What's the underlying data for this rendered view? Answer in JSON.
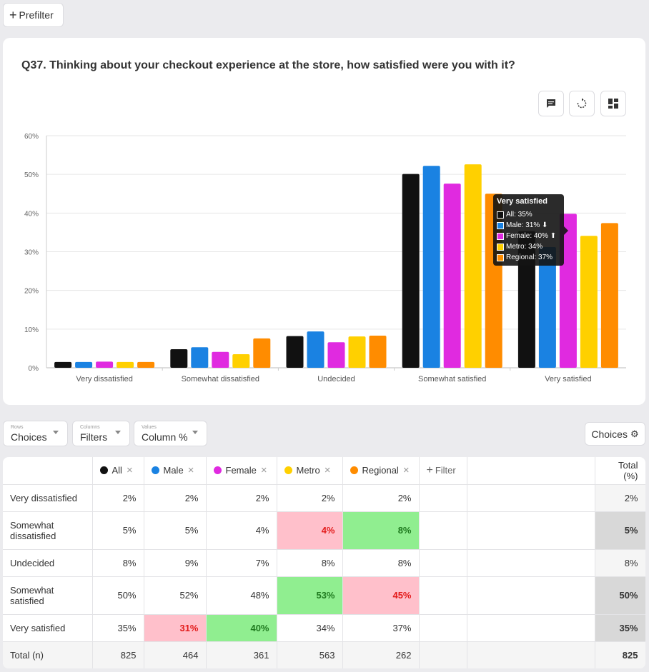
{
  "prefilter": {
    "label": "Prefilter"
  },
  "question": {
    "title": "Q37. Thinking about your checkout experience at the store, how satisfied were you with it?"
  },
  "toolbar": {
    "icons": [
      "comment-icon",
      "refresh-icon",
      "layout-icon"
    ]
  },
  "colors": {
    "All": "#111111",
    "Male": "#1a82e2",
    "Female": "#e02ae0",
    "Metro": "#ffd000",
    "Regional": "#ff8c00"
  },
  "chart_data": {
    "type": "bar",
    "categories": [
      "Very dissatisfied",
      "Somewhat dissatisfied",
      "Undecided",
      "Somewhat satisfied",
      "Very satisfied"
    ],
    "series": [
      {
        "name": "All",
        "values": [
          1.5,
          4.8,
          8.2,
          50.1,
          35.3
        ]
      },
      {
        "name": "Male",
        "values": [
          1.5,
          5.3,
          9.4,
          52.2,
          31.2
        ]
      },
      {
        "name": "Female",
        "values": [
          1.6,
          4.1,
          6.6,
          47.6,
          39.8
        ]
      },
      {
        "name": "Metro",
        "values": [
          1.5,
          3.5,
          8.1,
          52.6,
          34.1
        ]
      },
      {
        "name": "Regional",
        "values": [
          1.5,
          7.6,
          8.3,
          45.0,
          37.4
        ]
      }
    ],
    "ylim": [
      0,
      60
    ],
    "yticks": [
      "0%",
      "10%",
      "20%",
      "30%",
      "40%",
      "50%",
      "60%"
    ]
  },
  "tooltip": {
    "title": "Very satisfied",
    "rows": [
      "All: 35%",
      "Male: 31% ⬇",
      "Female: 40% ⬆",
      "Metro: 34%",
      "Regional: 37%"
    ]
  },
  "controls": {
    "rows": {
      "small": "Rows",
      "value": "Choices"
    },
    "columns": {
      "small": "Columns",
      "value": "Filters"
    },
    "values": {
      "small": "Values",
      "value": "Column %"
    },
    "choices_button": "Choices"
  },
  "table": {
    "headers": {
      "all": "All",
      "male": "Male",
      "female": "Female",
      "metro": "Metro",
      "regional": "Regional",
      "filter": "Filter",
      "total": "Total (%)"
    },
    "rows": [
      {
        "label": "Very dissatisfied",
        "cells": [
          "2%",
          "2%",
          "2%",
          "2%",
          "2%"
        ],
        "total": "2%"
      },
      {
        "label": "Somewhat dissatisfied",
        "cells": [
          "5%",
          "5%",
          "4%",
          "4%",
          "8%"
        ],
        "total": "5%"
      },
      {
        "label": "Undecided",
        "cells": [
          "8%",
          "9%",
          "7%",
          "8%",
          "8%"
        ],
        "total": "8%"
      },
      {
        "label": "Somewhat satisfied",
        "cells": [
          "50%",
          "52%",
          "48%",
          "53%",
          "45%"
        ],
        "total": "50%"
      },
      {
        "label": "Very satisfied",
        "cells": [
          "35%",
          "31%",
          "40%",
          "34%",
          "37%"
        ],
        "total": "35%"
      },
      {
        "label": "Total (n)",
        "cells": [
          "825",
          "464",
          "361",
          "563",
          "262"
        ],
        "total": "825"
      }
    ]
  }
}
